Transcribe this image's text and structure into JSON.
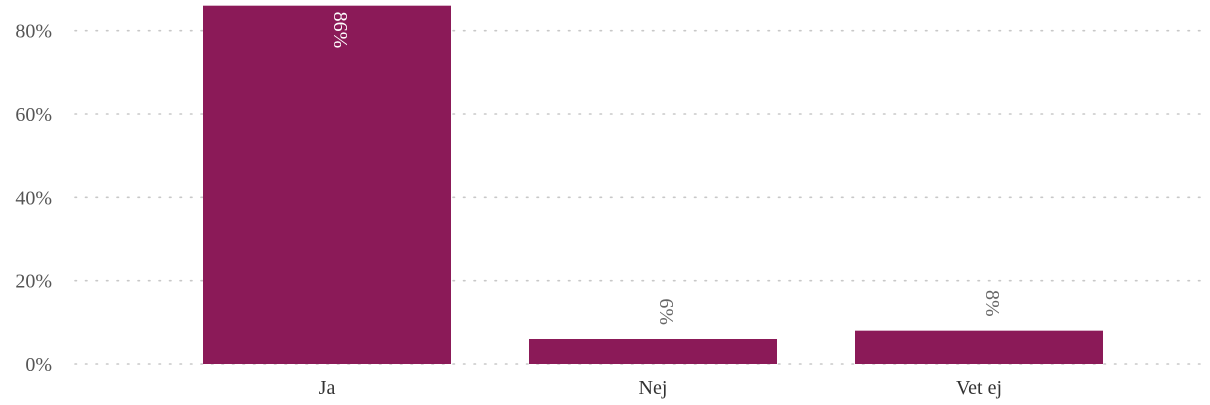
{
  "chart_data": {
    "type": "bar",
    "categories": [
      "Ja",
      "Nej",
      "Vet ej"
    ],
    "values": [
      86,
      6,
      8
    ],
    "data_labels": [
      "86%",
      "6%",
      "8%"
    ],
    "ylim": [
      0,
      86
    ],
    "y_ticks": [
      0,
      20,
      40,
      60,
      80
    ],
    "y_tick_labels": [
      "0%",
      "20%",
      "40%",
      "60%",
      "80%"
    ],
    "grid": true,
    "title": "",
    "xlabel": "",
    "ylabel": "",
    "bar_color": "#8b1a58",
    "label_color_inside": "#ffffff",
    "label_color_outside": "#666666"
  }
}
